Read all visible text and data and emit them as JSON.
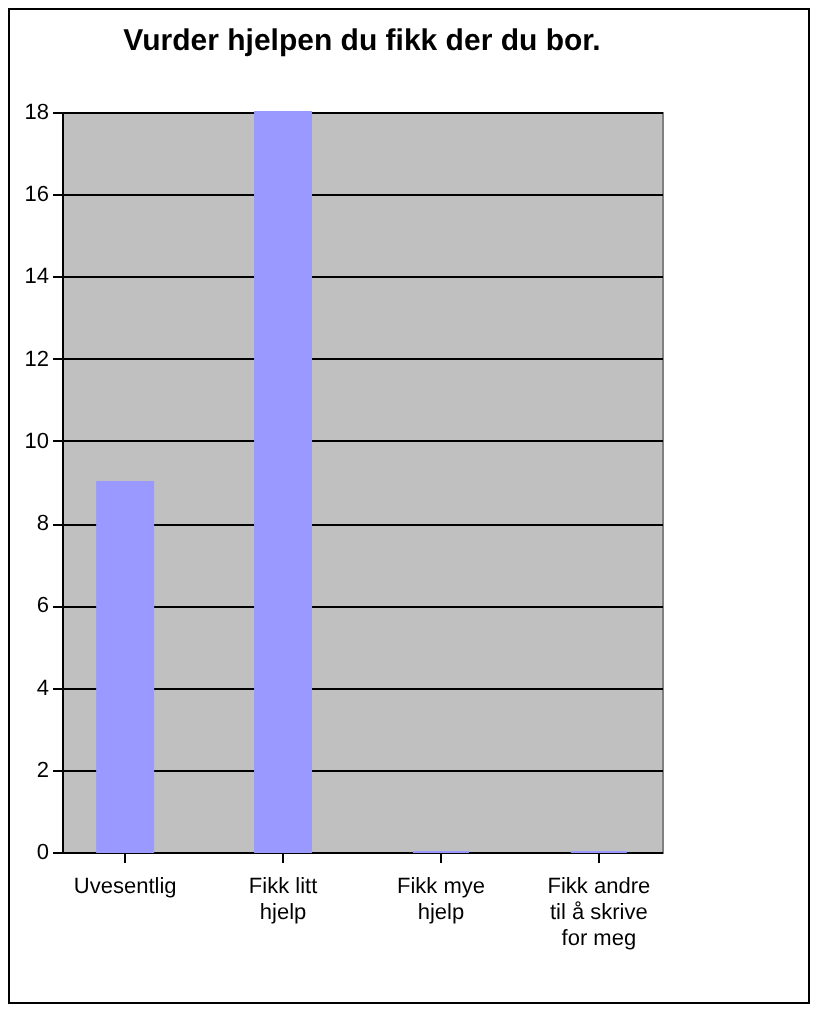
{
  "chart_data": {
    "type": "bar",
    "title": "Vurder hjelpen du fikk der du bor.",
    "categories": [
      "Uvesentlig",
      "Fikk litt hjelp",
      "Fikk mye hjelp",
      "Fikk andre til å skrive for meg"
    ],
    "values": [
      9,
      18,
      0,
      0
    ],
    "color": "#9999ff",
    "ylim": [
      0,
      18
    ],
    "yticks": [
      0,
      2,
      4,
      6,
      8,
      10,
      12,
      14,
      16,
      18
    ],
    "grid": true
  }
}
